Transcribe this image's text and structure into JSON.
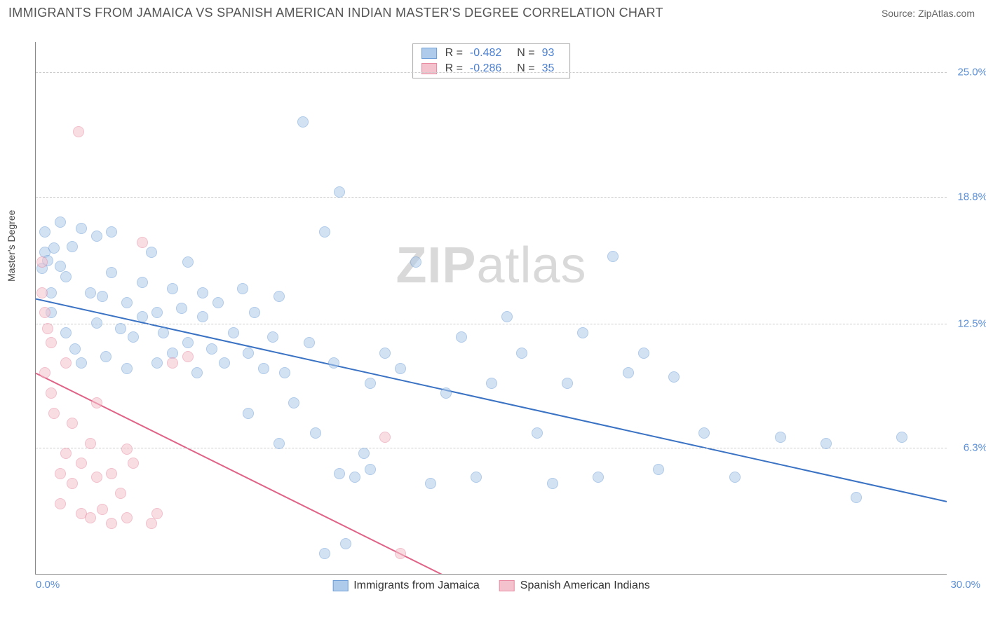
{
  "header": {
    "title": "IMMIGRANTS FROM JAMAICA VS SPANISH AMERICAN INDIAN MASTER'S DEGREE CORRELATION CHART",
    "source_prefix": "Source: ",
    "source_name": "ZipAtlas.com"
  },
  "ylabel": "Master's Degree",
  "watermark_a": "ZIP",
  "watermark_b": "atlas",
  "chart": {
    "type": "scatter",
    "xlim": [
      0.0,
      30.0
    ],
    "ylim": [
      0.0,
      26.5
    ],
    "x_ticks": [
      {
        "v": 0.0,
        "label": "0.0%"
      },
      {
        "v": 30.0,
        "label": "30.0%"
      }
    ],
    "y_ticks": [
      {
        "v": 6.3,
        "label": "6.3%"
      },
      {
        "v": 12.5,
        "label": "12.5%"
      },
      {
        "v": 18.8,
        "label": "18.8%"
      },
      {
        "v": 25.0,
        "label": "25.0%"
      }
    ],
    "grid_color": "#cccccc",
    "axis_color": "#888888",
    "background_color": "#ffffff",
    "marker_radius": 8,
    "marker_opacity": 0.55,
    "marker_border_width": 1.2,
    "label_fontsize": 15,
    "label_color": "#5b8fd6",
    "series": [
      {
        "name": "Immigrants from Jamaica",
        "fill": "#aecbeb",
        "stroke": "#6f9fd8",
        "line_color": "#3a72c4",
        "line_width": 2,
        "R": "-0.482",
        "N": "93",
        "trend": {
          "x1": 0.0,
          "y1": 13.7,
          "x2": 30.0,
          "y2": 3.6
        },
        "points": [
          [
            0.2,
            15.2
          ],
          [
            0.3,
            17.0
          ],
          [
            0.3,
            16.0
          ],
          [
            0.4,
            15.6
          ],
          [
            0.5,
            14.0
          ],
          [
            0.5,
            13.0
          ],
          [
            0.6,
            16.2
          ],
          [
            0.8,
            17.5
          ],
          [
            0.8,
            15.3
          ],
          [
            1.0,
            12.0
          ],
          [
            1.0,
            14.8
          ],
          [
            1.2,
            16.3
          ],
          [
            1.3,
            11.2
          ],
          [
            1.5,
            17.2
          ],
          [
            1.5,
            10.5
          ],
          [
            1.8,
            14.0
          ],
          [
            2.0,
            16.8
          ],
          [
            2.0,
            12.5
          ],
          [
            2.2,
            13.8
          ],
          [
            2.3,
            10.8
          ],
          [
            2.5,
            15.0
          ],
          [
            2.5,
            17.0
          ],
          [
            2.8,
            12.2
          ],
          [
            3.0,
            13.5
          ],
          [
            3.0,
            10.2
          ],
          [
            3.2,
            11.8
          ],
          [
            3.5,
            14.5
          ],
          [
            3.5,
            12.8
          ],
          [
            3.8,
            16.0
          ],
          [
            4.0,
            13.0
          ],
          [
            4.0,
            10.5
          ],
          [
            4.2,
            12.0
          ],
          [
            4.5,
            14.2
          ],
          [
            4.5,
            11.0
          ],
          [
            4.8,
            13.2
          ],
          [
            5.0,
            15.5
          ],
          [
            5.0,
            11.5
          ],
          [
            5.3,
            10.0
          ],
          [
            5.5,
            12.8
          ],
          [
            5.5,
            14.0
          ],
          [
            5.8,
            11.2
          ],
          [
            6.0,
            13.5
          ],
          [
            6.2,
            10.5
          ],
          [
            6.5,
            12.0
          ],
          [
            6.8,
            14.2
          ],
          [
            7.0,
            11.0
          ],
          [
            7.0,
            8.0
          ],
          [
            7.2,
            13.0
          ],
          [
            7.5,
            10.2
          ],
          [
            7.8,
            11.8
          ],
          [
            8.0,
            6.5
          ],
          [
            8.0,
            13.8
          ],
          [
            8.2,
            10.0
          ],
          [
            8.5,
            8.5
          ],
          [
            8.8,
            22.5
          ],
          [
            9.0,
            11.5
          ],
          [
            9.2,
            7.0
          ],
          [
            9.5,
            17.0
          ],
          [
            9.5,
            1.0
          ],
          [
            9.8,
            10.5
          ],
          [
            10.0,
            5.0
          ],
          [
            10.0,
            19.0
          ],
          [
            10.2,
            1.5
          ],
          [
            10.5,
            4.8
          ],
          [
            10.8,
            6.0
          ],
          [
            11.0,
            9.5
          ],
          [
            11.0,
            5.2
          ],
          [
            11.5,
            11.0
          ],
          [
            12.0,
            10.2
          ],
          [
            12.5,
            15.5
          ],
          [
            13.0,
            4.5
          ],
          [
            13.5,
            9.0
          ],
          [
            14.0,
            11.8
          ],
          [
            14.5,
            4.8
          ],
          [
            15.0,
            9.5
          ],
          [
            15.5,
            12.8
          ],
          [
            16.0,
            11.0
          ],
          [
            16.5,
            7.0
          ],
          [
            17.0,
            4.5
          ],
          [
            17.5,
            9.5
          ],
          [
            18.0,
            12.0
          ],
          [
            18.5,
            4.8
          ],
          [
            19.0,
            15.8
          ],
          [
            19.5,
            10.0
          ],
          [
            20.0,
            11.0
          ],
          [
            20.5,
            5.2
          ],
          [
            21.0,
            9.8
          ],
          [
            22.0,
            7.0
          ],
          [
            23.0,
            4.8
          ],
          [
            24.5,
            6.8
          ],
          [
            26.0,
            6.5
          ],
          [
            27.0,
            3.8
          ],
          [
            28.5,
            6.8
          ]
        ]
      },
      {
        "name": "Spanish American Indians",
        "fill": "#f4c2cd",
        "stroke": "#e88ba3",
        "line_color": "#e06387",
        "line_width": 2,
        "R": "-0.286",
        "N": "35",
        "trend": {
          "x1": 0.0,
          "y1": 10.0,
          "x2": 14.0,
          "y2": -0.5
        },
        "points": [
          [
            0.2,
            14.0
          ],
          [
            0.2,
            15.5
          ],
          [
            0.3,
            13.0
          ],
          [
            0.3,
            10.0
          ],
          [
            0.4,
            12.2
          ],
          [
            0.5,
            9.0
          ],
          [
            0.5,
            11.5
          ],
          [
            0.6,
            8.0
          ],
          [
            0.8,
            3.5
          ],
          [
            0.8,
            5.0
          ],
          [
            1.0,
            6.0
          ],
          [
            1.0,
            10.5
          ],
          [
            1.2,
            4.5
          ],
          [
            1.2,
            7.5
          ],
          [
            1.4,
            22.0
          ],
          [
            1.5,
            3.0
          ],
          [
            1.5,
            5.5
          ],
          [
            1.8,
            2.8
          ],
          [
            1.8,
            6.5
          ],
          [
            2.0,
            4.8
          ],
          [
            2.0,
            8.5
          ],
          [
            2.2,
            3.2
          ],
          [
            2.5,
            5.0
          ],
          [
            2.5,
            2.5
          ],
          [
            2.8,
            4.0
          ],
          [
            3.0,
            6.2
          ],
          [
            3.0,
            2.8
          ],
          [
            3.2,
            5.5
          ],
          [
            3.5,
            16.5
          ],
          [
            3.8,
            2.5
          ],
          [
            4.0,
            3.0
          ],
          [
            4.5,
            10.5
          ],
          [
            5.0,
            10.8
          ],
          [
            11.5,
            6.8
          ],
          [
            12.0,
            1.0
          ]
        ]
      }
    ]
  },
  "bottom_legend": [
    {
      "label": "Immigrants from Jamaica",
      "fill": "#aecbeb",
      "stroke": "#6f9fd8"
    },
    {
      "label": "Spanish American Indians",
      "fill": "#f4c2cd",
      "stroke": "#e88ba3"
    }
  ]
}
